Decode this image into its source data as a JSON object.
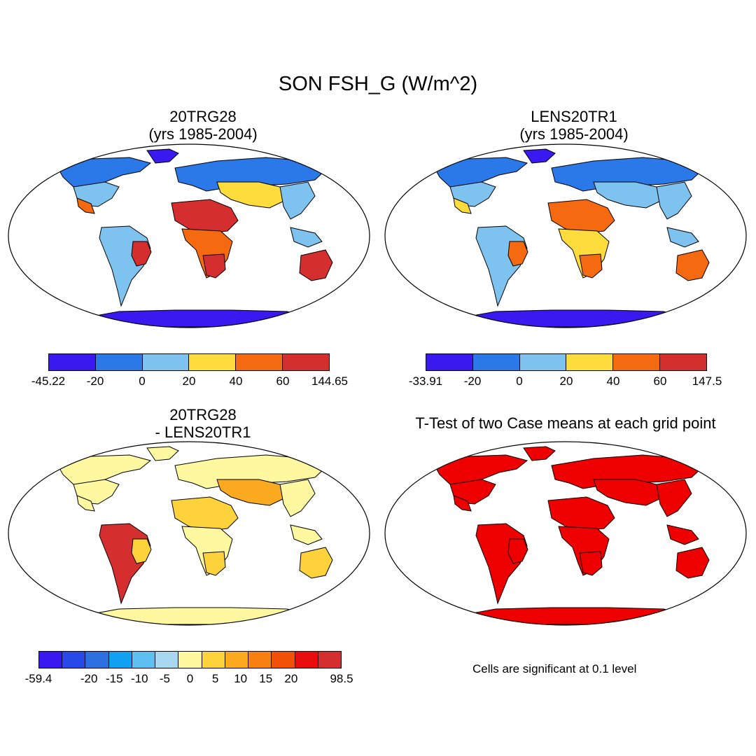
{
  "main_title": "SON FSH_G (W/m^2)",
  "panels": [
    {
      "id": "p1",
      "title_line1": "20TRG28",
      "title_line2": "(yrs 1985-2004)",
      "colorbar": {
        "colors": [
          "#3a18f0",
          "#2b78e8",
          "#7ec3ef",
          "#fddc3c",
          "#f56a10",
          "#d42e2e"
        ],
        "labels": [
          "-45.22",
          "-20",
          "0",
          "20",
          "40",
          "60",
          "144.65"
        ]
      },
      "land_palette": {
        "desert": "#d42e2e",
        "semi": "#f56a10",
        "dry": "#fddc3c",
        "temperate": "#7ec3ef",
        "cold": "#2b78e8",
        "ice": "#3a18f0"
      }
    },
    {
      "id": "p2",
      "title_line1": "LENS20TR1",
      "title_line2": "(yrs 1985-2004)",
      "colorbar": {
        "colors": [
          "#3a18f0",
          "#2b78e8",
          "#7ec3ef",
          "#fddc3c",
          "#f56a10",
          "#d42e2e"
        ],
        "labels": [
          "-33.91",
          "-20",
          "0",
          "20",
          "40",
          "60",
          "147.5"
        ]
      },
      "land_palette": {
        "desert": "#f56a10",
        "semi": "#fddc3c",
        "dry": "#7ec3ef",
        "temperate": "#7ec3ef",
        "cold": "#2b78e8",
        "ice": "#3a18f0"
      }
    },
    {
      "id": "p3",
      "title_line1": "20TRG28",
      "title_line2": "- LENS20TR1",
      "colorbar": {
        "colors": [
          "#3a18f0",
          "#2848e8",
          "#2f70e0",
          "#12a0f0",
          "#5ec0f0",
          "#a8d8f0",
          "#fef8a0",
          "#fdd23a",
          "#fbaa20",
          "#f88010",
          "#f05008",
          "#e80c0c",
          "#d42e2e"
        ],
        "labels": [
          "-59.4",
          "",
          "-20",
          "-15",
          "-10",
          "-5",
          "0",
          "5",
          "10",
          "15",
          "20",
          "",
          "98.5"
        ]
      },
      "land_palette": {
        "desert": "#fdd23a",
        "semi": "#fef8a0",
        "dry": "#fbaa20",
        "temperate": "#fef8a0",
        "cold": "#fef8a0",
        "ice": "#fef8a0",
        "tropic": "#d42e2e"
      }
    },
    {
      "id": "p4",
      "title_line1": "T-Test of two Case means at each grid point",
      "note": "Cells are significant at 0.1 level",
      "land_palette": {
        "desert": "#ee0000",
        "semi": "#ee0000",
        "dry": "#ee0000",
        "temperate": "#ee0000",
        "cold": "#ee0000",
        "ice": "#ee0000"
      }
    }
  ]
}
